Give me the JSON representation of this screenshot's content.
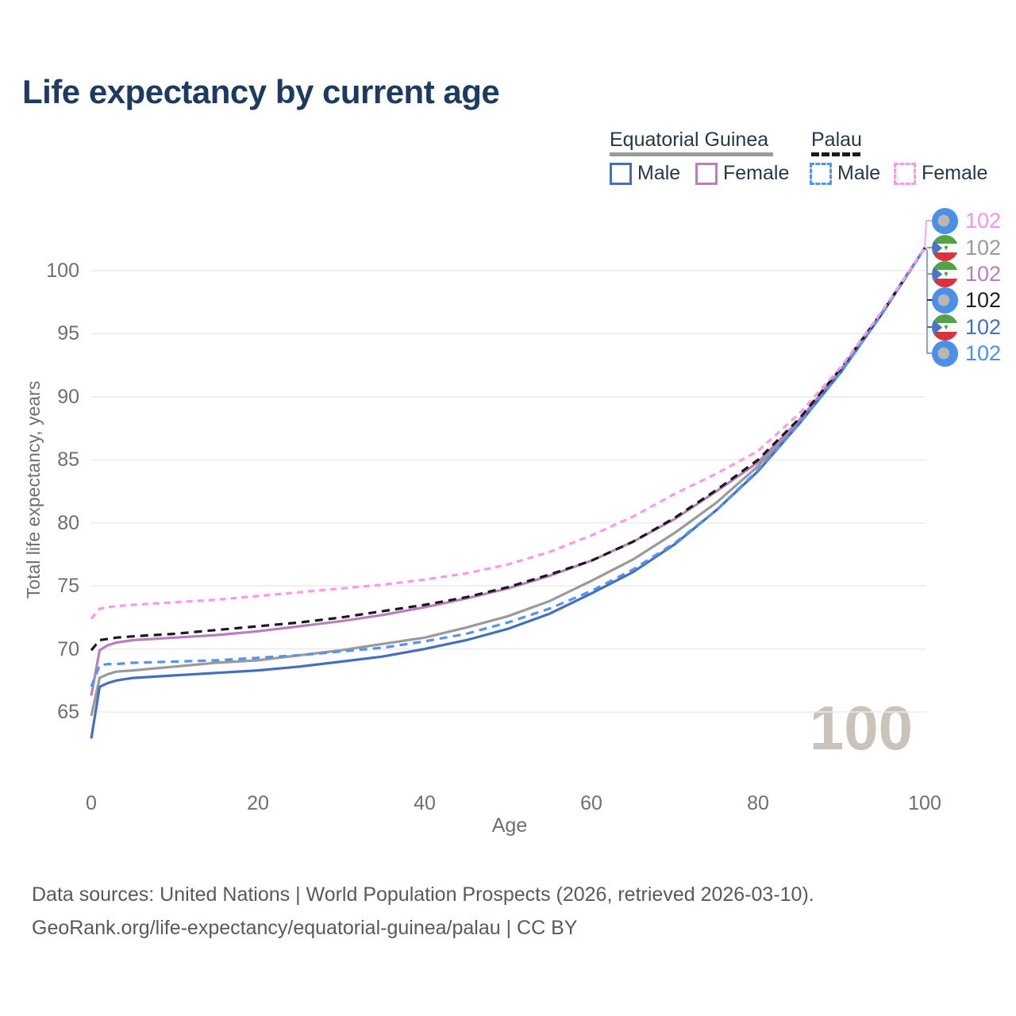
{
  "title": "Life expectancy by current age",
  "watermark": "100",
  "footer": {
    "line1": "Data sources: United Nations | World Population Prospects (2026, retrieved 2026-03-10).",
    "line2": "GeoRank.org/life-expectancy/equatorial-guinea/palau | CC BY"
  },
  "legend": {
    "groups": [
      {
        "label": "Equatorial Guinea",
        "underline_color": "#9a9a9a",
        "underline_style": "solid",
        "items": [
          {
            "label": "Male",
            "color": "#456fbe",
            "dashed": false
          },
          {
            "label": "Female",
            "color": "#b77fbe",
            "dashed": false
          }
        ]
      },
      {
        "label": "Palau",
        "underline_color": "#1a1a1a",
        "underline_style": "dashed",
        "items": [
          {
            "label": "Male",
            "color": "#5494f0",
            "dashed": true
          },
          {
            "label": "Female",
            "color": "#fb99e8",
            "dashed": true
          }
        ]
      }
    ]
  },
  "chart_data": {
    "type": "line",
    "title": "Life expectancy by current age",
    "xlabel": "Age",
    "ylabel": "Total life expectancy, years",
    "xlim": [
      0,
      100
    ],
    "ylim": [
      62,
      103
    ],
    "xticks": [
      0,
      20,
      40,
      60,
      80,
      100
    ],
    "yticks": [
      65,
      70,
      75,
      80,
      85,
      90,
      95,
      100
    ],
    "grid": "horizontal",
    "grid_color": "#ececec",
    "x": [
      0,
      1,
      2,
      3,
      5,
      10,
      15,
      20,
      25,
      30,
      35,
      40,
      45,
      50,
      55,
      60,
      65,
      70,
      75,
      80,
      85,
      90,
      95,
      100
    ],
    "series": [
      {
        "name": "Equatorial Guinea — Both sexes",
        "country": "Equatorial Guinea",
        "sex": "both",
        "color": "#9a9a9a",
        "dashed": false,
        "flag": "equatorial-guinea",
        "end_value": "102",
        "values": [
          64.7,
          67.7,
          68.0,
          68.2,
          68.3,
          68.6,
          68.9,
          69.1,
          69.5,
          69.9,
          70.4,
          70.9,
          71.7,
          72.6,
          73.8,
          75.4,
          77.1,
          79.2,
          81.6,
          84.5,
          88.0,
          92.1,
          96.7,
          101.8
        ]
      },
      {
        "name": "Equatorial Guinea — Female",
        "country": "Equatorial Guinea",
        "sex": "female",
        "color": "#b77fbe",
        "dashed": false,
        "flag": "equatorial-guinea",
        "end_value": "102",
        "values": [
          66.3,
          69.9,
          70.3,
          70.5,
          70.7,
          70.9,
          71.1,
          71.4,
          71.8,
          72.2,
          72.7,
          73.3,
          74.0,
          74.8,
          75.8,
          77.0,
          78.5,
          80.3,
          82.5,
          84.8,
          88.2,
          92.2,
          96.8,
          101.8
        ]
      },
      {
        "name": "Equatorial Guinea — Male",
        "country": "Equatorial Guinea",
        "sex": "male",
        "color": "#456fbe",
        "dashed": false,
        "flag": "equatorial-guinea",
        "end_value": "102",
        "values": [
          62.9,
          67.0,
          67.3,
          67.5,
          67.7,
          67.9,
          68.1,
          68.3,
          68.6,
          69.0,
          69.4,
          70.0,
          70.7,
          71.6,
          72.8,
          74.4,
          76.1,
          78.3,
          81.0,
          84.1,
          87.9,
          92.0,
          96.7,
          101.8
        ]
      },
      {
        "name": "Palau — Both sexes",
        "country": "Palau",
        "sex": "both",
        "color": "#1a1a1a",
        "dashed": true,
        "flag": "palau",
        "end_value": "102",
        "values": [
          69.9,
          70.7,
          70.8,
          70.9,
          71.0,
          71.2,
          71.5,
          71.8,
          72.1,
          72.5,
          73.0,
          73.5,
          74.1,
          74.9,
          75.9,
          77.0,
          78.5,
          80.4,
          82.6,
          85.0,
          88.3,
          92.3,
          96.8,
          101.8
        ]
      },
      {
        "name": "Palau — Male",
        "country": "Palau",
        "sex": "male",
        "color": "#5494f0",
        "dashed": true,
        "flag": "palau",
        "end_value": "102",
        "values": [
          67.0,
          68.7,
          68.8,
          68.8,
          68.9,
          69.0,
          69.1,
          69.3,
          69.5,
          69.8,
          70.1,
          70.6,
          71.2,
          72.1,
          73.2,
          74.6,
          76.3,
          78.4,
          81.0,
          84.2,
          87.9,
          92.0,
          96.7,
          101.8
        ]
      },
      {
        "name": "Palau — Female",
        "country": "Palau",
        "sex": "female",
        "color": "#fb99e8",
        "dashed": true,
        "flag": "palau",
        "end_value": "102",
        "values": [
          72.4,
          73.2,
          73.3,
          73.4,
          73.5,
          73.7,
          73.9,
          74.2,
          74.5,
          74.8,
          75.1,
          75.5,
          76.0,
          76.7,
          77.7,
          79.0,
          80.5,
          82.3,
          83.9,
          85.7,
          88.7,
          92.4,
          96.9,
          101.8
        ]
      }
    ],
    "end_labels": [
      {
        "series": "Palau — Female",
        "flag": "palau",
        "color": "#f893e6",
        "value": "102"
      },
      {
        "series": "Equatorial Guinea — Both sexes",
        "flag": "equatorial-guinea",
        "color": "#9a9a9a",
        "value": "102"
      },
      {
        "series": "Equatorial Guinea — Female",
        "flag": "equatorial-guinea",
        "color": "#b77fbe",
        "value": "102"
      },
      {
        "series": "Palau — Both sexes",
        "flag": "palau",
        "color": "#212121",
        "value": "102"
      },
      {
        "series": "Equatorial Guinea — Male",
        "flag": "equatorial-guinea",
        "color": "#456fbe",
        "value": "102"
      },
      {
        "series": "Palau — Male",
        "flag": "palau",
        "color": "#4a90f2",
        "value": "102"
      }
    ],
    "legend_position": "top-right",
    "leader_trunk_color": "#7aa9f2",
    "leader_pink_color": "#f9a8e5"
  }
}
